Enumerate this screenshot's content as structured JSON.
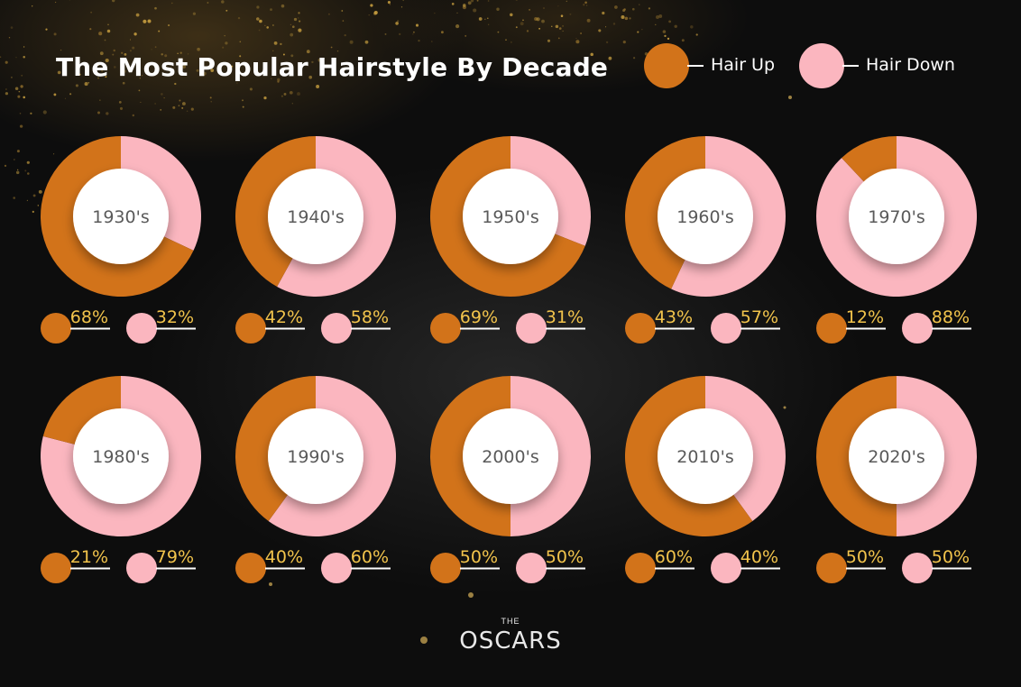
{
  "title": "The Most Popular Hairstyle By Decade",
  "legend": [
    {
      "label": "Hair Up",
      "color": "#d2731a"
    },
    {
      "label": "Hair Down",
      "color": "#fbb6bf"
    }
  ],
  "footer": {
    "the": "THE",
    "brand": "OSCARS"
  },
  "colors": {
    "hair_up": "#d2731a",
    "hair_down": "#fbb6bf",
    "percent_text": "#f2c44c",
    "background": "#111111"
  },
  "chart_data": {
    "type": "pie",
    "variant": "donut-grid",
    "series_names": [
      "Hair Up",
      "Hair Down"
    ],
    "decades": [
      {
        "label": "1930's",
        "up": 68,
        "down": 32,
        "up_label": "68%",
        "down_label": "32%"
      },
      {
        "label": "1940's",
        "up": 42,
        "down": 58,
        "up_label": "42%",
        "down_label": "58%"
      },
      {
        "label": "1950's",
        "up": 69,
        "down": 31,
        "up_label": "69%",
        "down_label": "31%"
      },
      {
        "label": "1960's",
        "up": 43,
        "down": 57,
        "up_label": "43%",
        "down_label": "57%"
      },
      {
        "label": "1970's",
        "up": 12,
        "down": 88,
        "up_label": "12%",
        "down_label": "88%"
      },
      {
        "label": "1980's",
        "up": 21,
        "down": 79,
        "up_label": "21%",
        "down_label": "79%"
      },
      {
        "label": "1990's",
        "up": 40,
        "down": 60,
        "up_label": "40%",
        "down_label": "60%"
      },
      {
        "label": "2000's",
        "up": 50,
        "down": 50,
        "up_label": "50%",
        "down_label": "50%"
      },
      {
        "label": "2010's",
        "up": 60,
        "down": 40,
        "up_label": "60%",
        "down_label": "40%"
      },
      {
        "label": "2020's",
        "up": 50,
        "down": 50,
        "up_label": "50%",
        "down_label": "50%"
      }
    ]
  }
}
